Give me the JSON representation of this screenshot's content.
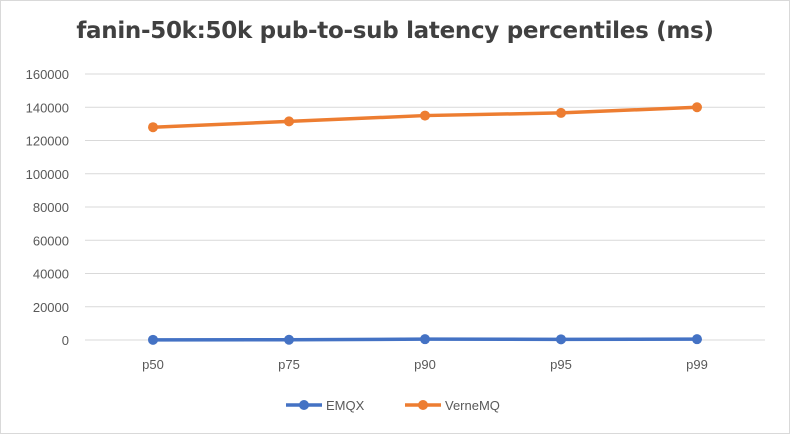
{
  "chart_data": {
    "type": "line",
    "title": "fanin-50k:50k pub-to-sub latency percentiles (ms)",
    "xlabel": "",
    "ylabel": "",
    "categories": [
      "p50",
      "p75",
      "p90",
      "p95",
      "p99"
    ],
    "ylim": [
      0,
      160000
    ],
    "yticks": [
      0,
      20000,
      40000,
      60000,
      80000,
      100000,
      120000,
      140000,
      160000
    ],
    "grid": true,
    "legend": "bottom",
    "series": [
      {
        "name": "EMQX",
        "color": "#4472c4",
        "values": [
          100,
          150,
          500,
          400,
          500
        ]
      },
      {
        "name": "VerneMQ",
        "color": "#ed7d31",
        "values": [
          128000,
          131500,
          135000,
          136600,
          140000
        ]
      }
    ]
  }
}
